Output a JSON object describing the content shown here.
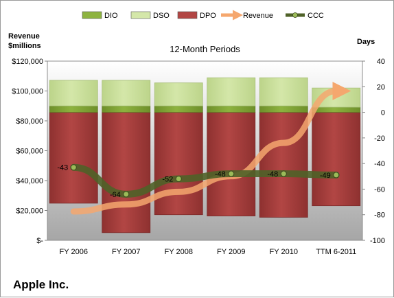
{
  "company": "Apple Inc.",
  "chart_data": {
    "type": "bar",
    "title": "12-Month Periods",
    "left_axis_label": [
      "Revenue",
      "$millions"
    ],
    "right_axis_label": "Days",
    "categories": [
      "FY 2006",
      "FY 2007",
      "FY 2008",
      "FY 2009",
      "FY 2010",
      "TTM 6-2011"
    ],
    "left_axis": {
      "min": 0,
      "max": 120000,
      "step": 20000,
      "tick_labels": [
        "$-",
        "$20,000",
        "$40,000",
        "$60,000",
        "$80,000",
        "$100,000",
        "$120,000"
      ]
    },
    "right_axis": {
      "min": -100,
      "max": 40,
      "step": 20,
      "tick_labels": [
        "-100",
        "-80",
        "-60",
        "-40",
        "-20",
        "0",
        "20",
        "40"
      ]
    },
    "legend": {
      "position": "top",
      "items": [
        "DIO",
        "DSO",
        "DPO",
        "Revenue",
        "CCC"
      ]
    },
    "series": [
      {
        "name": "DIO",
        "axis": "right",
        "kind": "bar-stack-up",
        "values": [
          5,
          5,
          5,
          5,
          5,
          4
        ]
      },
      {
        "name": "DSO",
        "axis": "right",
        "kind": "bar-stack-up",
        "values": [
          20,
          20,
          18,
          22,
          22,
          15
        ]
      },
      {
        "name": "DPO",
        "axis": "right",
        "kind": "bar-down",
        "values": [
          -71,
          -94,
          -80,
          -81,
          -82,
          -73
        ]
      },
      {
        "name": "Revenue",
        "axis": "left",
        "kind": "arrow-line",
        "values": [
          19315,
          24006,
          32479,
          42905,
          65225,
          100000
        ]
      },
      {
        "name": "CCC",
        "axis": "right",
        "kind": "line",
        "values": [
          -43,
          -64,
          -52,
          -48,
          -48,
          -49
        ],
        "labels": [
          "-43",
          "-64",
          "-52",
          "-48",
          "-48",
          "-49"
        ]
      }
    ],
    "colors": {
      "DIO": "#8db33f",
      "DSO": "#d4e7a9",
      "DPO": "#b24644",
      "Revenue": "#f5a76e",
      "CCC": "#4f6228",
      "plot_bg_top": "#ffffff",
      "plot_bg_bottom": "#a6a6a6"
    }
  }
}
